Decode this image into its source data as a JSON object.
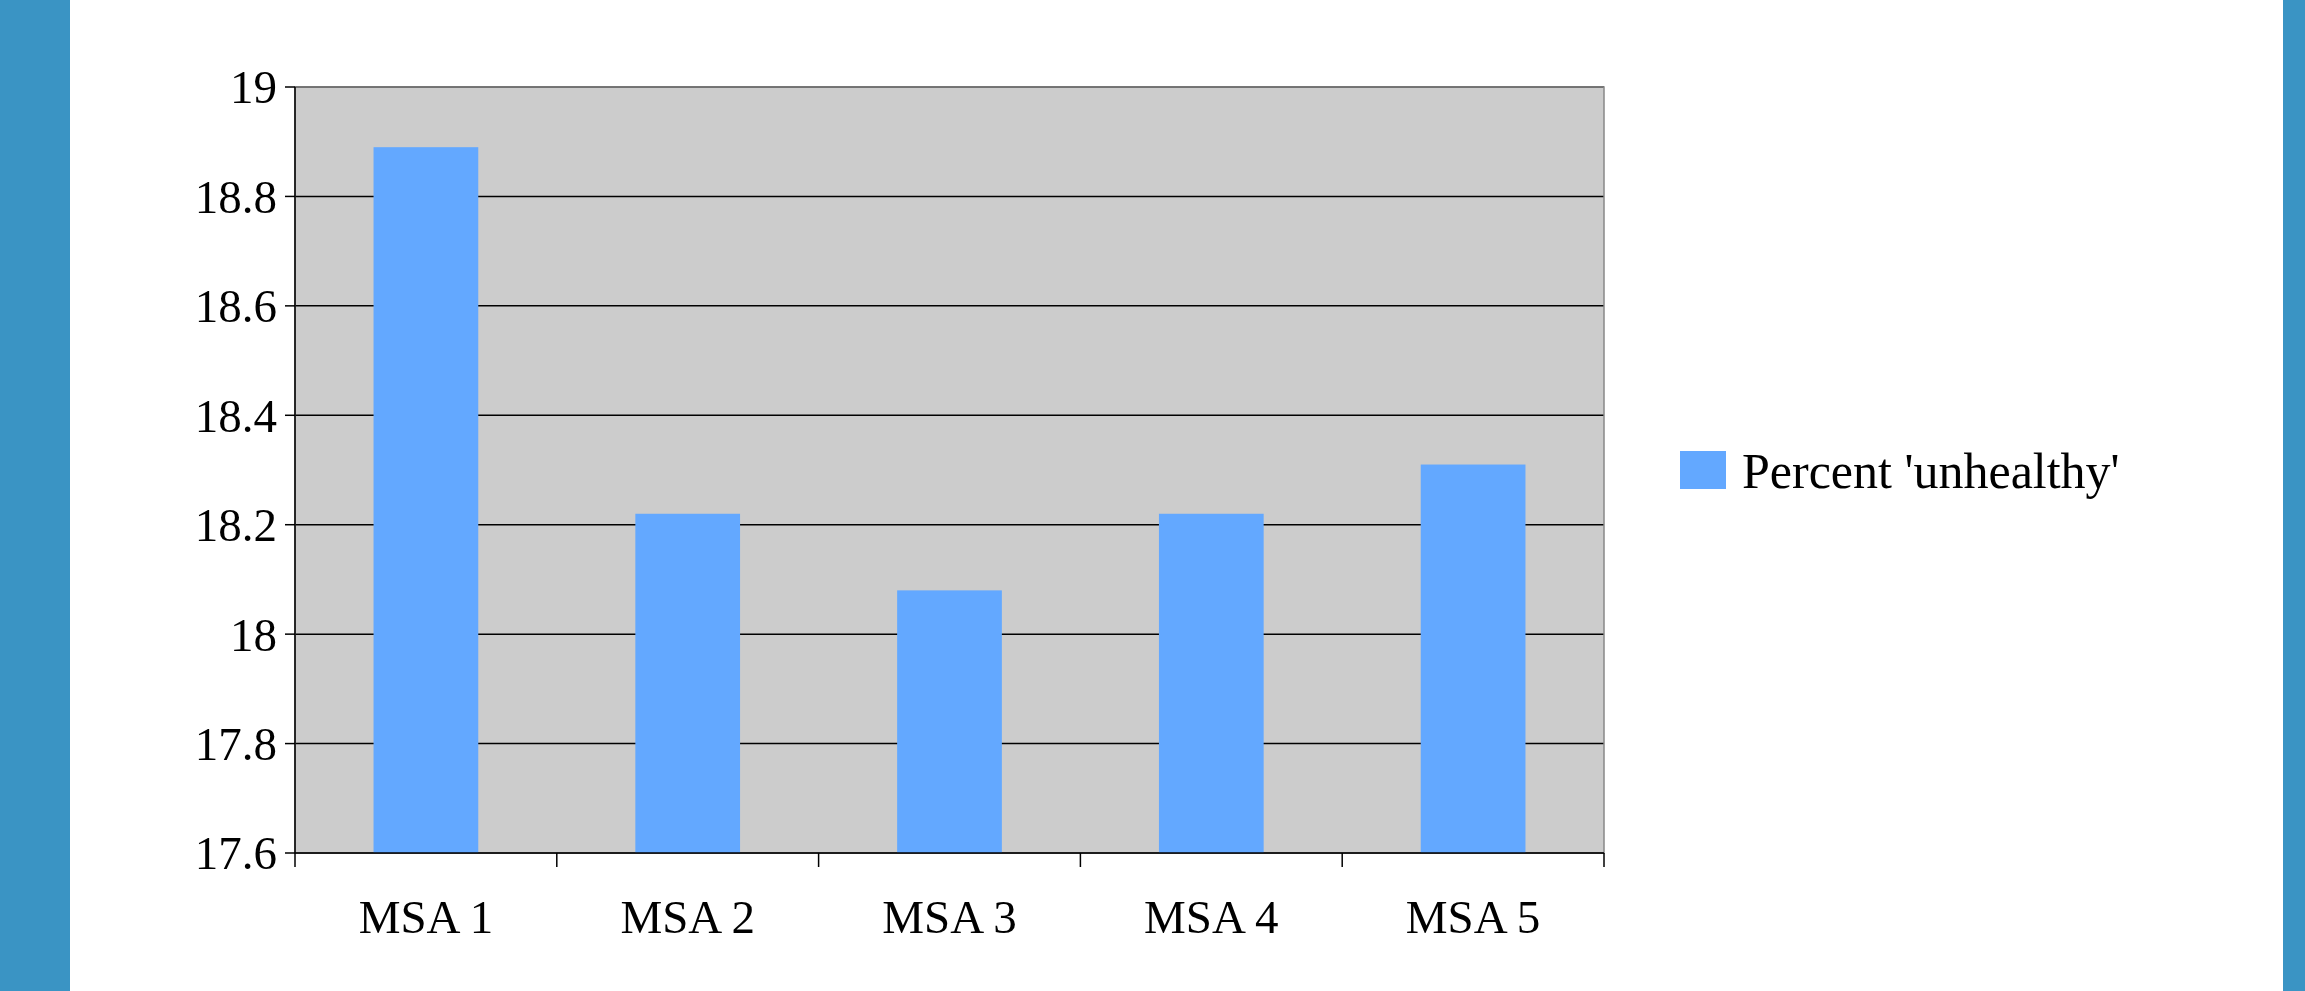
{
  "chart_data": {
    "type": "bar",
    "categories": [
      "MSA 1",
      "MSA 2",
      "MSA 3",
      "MSA 4",
      "MSA 5"
    ],
    "series": [
      {
        "name": "Percent 'unhealthy'",
        "color": "#63a8ff",
        "values": [
          18.89,
          18.22,
          18.08,
          18.22,
          18.31
        ]
      }
    ],
    "ylim": [
      17.6,
      19
    ],
    "yticks": [
      17.6,
      17.8,
      18,
      18.2,
      18.4,
      18.6,
      18.8,
      19
    ],
    "grid": "y",
    "legend": "right"
  }
}
